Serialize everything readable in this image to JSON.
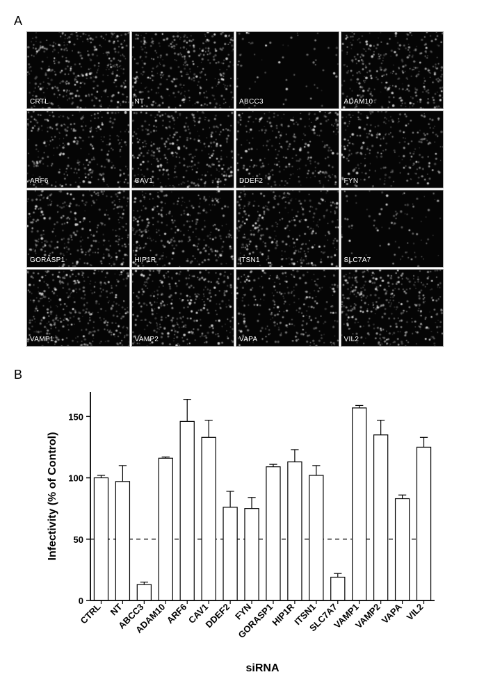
{
  "panel_a": {
    "label": "A",
    "grid": {
      "rows": 4,
      "cols": 4,
      "cell_bg": "#050505",
      "dot_color": "#b8b8b8",
      "label_color": "#ffffff",
      "label_fontsize": 10,
      "cells": [
        {
          "label": "CRTL",
          "density": 0.75
        },
        {
          "label": "NT",
          "density": 0.72
        },
        {
          "label": "ABCC3",
          "density": 0.12
        },
        {
          "label": "ADAM10",
          "density": 0.7
        },
        {
          "label": "ARF6",
          "density": 0.6
        },
        {
          "label": "CAV1",
          "density": 0.68
        },
        {
          "label": "DDEF2",
          "density": 0.55
        },
        {
          "label": "FYN",
          "density": 0.52
        },
        {
          "label": "GORASP1",
          "density": 0.65
        },
        {
          "label": "HIP1R",
          "density": 0.62
        },
        {
          "label": "ITSN1",
          "density": 0.65
        },
        {
          "label": "SLC7A7",
          "density": 0.18
        },
        {
          "label": "VAMP1",
          "density": 0.78
        },
        {
          "label": "VAMP2",
          "density": 0.72
        },
        {
          "label": "VAPA",
          "density": 0.55
        },
        {
          "label": "VIL2",
          "density": 0.75
        }
      ]
    }
  },
  "panel_b": {
    "label": "B",
    "chart": {
      "type": "bar",
      "ylabel": "Infectivity (% of Control)",
      "xlabel": "siRNA",
      "label_fontsize": 16,
      "label_fontweight": "bold",
      "tick_fontsize": 13,
      "tick_fontweight": "bold",
      "ylim": [
        0,
        170
      ],
      "yticks": [
        0,
        50,
        100,
        150
      ],
      "ref_line": 50,
      "ref_line_style": "dashed",
      "axis_color": "#000000",
      "bar_fill": "#ffffff",
      "bar_stroke": "#000000",
      "bar_stroke_width": 1.2,
      "error_stroke": "#000000",
      "error_width": 1.2,
      "bar_width_ratio": 0.65,
      "background_color": "#ffffff",
      "categories": [
        "CTRL",
        "NT",
        "ABCC3",
        "ADAM10",
        "ARF6",
        "CAV1",
        "DDEF2",
        "FYN",
        "GORASP1",
        "HIP1R",
        "ITSN1",
        "SLC7A7",
        "VAMP1",
        "VAMP2",
        "VAPA",
        "VIL2"
      ],
      "values": [
        100,
        97,
        13,
        116,
        146,
        133,
        76,
        75,
        109,
        113,
        102,
        19,
        157,
        135,
        83,
        125
      ],
      "errors": [
        2,
        13,
        2,
        1,
        18,
        14,
        13,
        9,
        2,
        10,
        8,
        3,
        2,
        12,
        3,
        8
      ]
    }
  }
}
